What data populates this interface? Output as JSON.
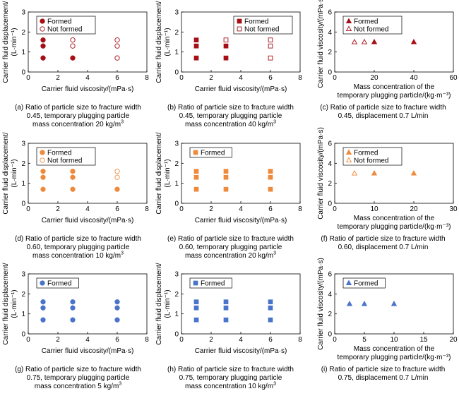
{
  "panels": [
    {
      "caption": {
        "line1": "(a) Ratio of particle size to fracture width",
        "line2": "0.45, temporary plugging particle",
        "line3": "mass concentration 20 kg/m",
        "sup": "3"
      },
      "chart_data": {
        "type": "scatter",
        "marker": "circle",
        "color": "#a50f15",
        "xlabel": "Carrier fluid viscosity/(mPa·s)",
        "ylabel": [
          "Carrier fluid displacement/",
          "(L·min⁻¹)"
        ],
        "xlim": [
          0,
          8
        ],
        "ylim": [
          0,
          3
        ],
        "xticks": [
          0,
          2,
          4,
          6,
          8
        ],
        "yticks": [
          0,
          1,
          2,
          3
        ],
        "legend": {
          "position": "top-left"
        },
        "series": [
          {
            "name": "Formed",
            "filled": true,
            "points": [
              [
                1,
                0.7
              ],
              [
                1,
                1.3
              ],
              [
                1,
                1.6
              ],
              [
                3,
                0.7
              ]
            ]
          },
          {
            "name": "Not formed",
            "filled": false,
            "points": [
              [
                3,
                1.3
              ],
              [
                3,
                1.6
              ],
              [
                6,
                0.7
              ],
              [
                6,
                1.3
              ],
              [
                6,
                1.6
              ]
            ]
          }
        ]
      }
    },
    {
      "caption": {
        "line1": "(b) Ratio of particle size to fracture width",
        "line2": "0.45, temporary plugging particle",
        "line3": "mass concentration 40 kg/m",
        "sup": "3"
      },
      "chart_data": {
        "type": "scatter",
        "marker": "square",
        "color": "#a50f15",
        "xlabel": "Carrier fluid viscosity/(mPa·s)",
        "ylabel": [
          "Carrier fluid displacement/",
          "(L·min⁻¹)"
        ],
        "xlim": [
          0,
          8
        ],
        "ylim": [
          0,
          3
        ],
        "xticks": [
          0,
          2,
          4,
          6,
          8
        ],
        "yticks": [
          0,
          1,
          2,
          3
        ],
        "legend": {
          "position": "top-center"
        },
        "series": [
          {
            "name": "Formed",
            "filled": true,
            "points": [
              [
                1,
                0.7
              ],
              [
                1,
                1.3
              ],
              [
                1,
                1.6
              ],
              [
                3,
                0.7
              ],
              [
                3,
                1.3
              ]
            ]
          },
          {
            "name": "Not formed",
            "filled": false,
            "points": [
              [
                3,
                1.6
              ],
              [
                6,
                0.7
              ],
              [
                6,
                1.3
              ],
              [
                6,
                1.6
              ]
            ]
          }
        ]
      }
    },
    {
      "caption": {
        "line1": "(c) Ratio of particle size to fracture width",
        "line2": "0.45, displacement 0.7 L/min",
        "line3": "",
        "sup": ""
      },
      "chart_data": {
        "type": "scatter",
        "marker": "triangle",
        "color": "#a50f15",
        "xlabel": "Mass concentration of the temporary plugging particle/(kg·m⁻³)",
        "ylabel": [
          "Carrier fluid viscosity/(mPa·s)"
        ],
        "xlim": [
          0,
          60
        ],
        "ylim": [
          0,
          6
        ],
        "xticks": [
          0,
          20,
          40,
          60
        ],
        "yticks": [
          0,
          2,
          4,
          6
        ],
        "legend": {
          "position": "top-left"
        },
        "series": [
          {
            "name": "Formed",
            "filled": true,
            "points": [
              [
                20,
                3
              ],
              [
                40,
                3
              ]
            ]
          },
          {
            "name": "Not formed",
            "filled": false,
            "points": [
              [
                10,
                3
              ],
              [
                15,
                3
              ]
            ]
          }
        ]
      }
    },
    {
      "caption": {
        "line1": "(d) Ratio of particle size to fracture width",
        "line2": "0.60, temporary plugging particle",
        "line3": "mass concentration 10 kg/m",
        "sup": "3"
      },
      "chart_data": {
        "type": "scatter",
        "marker": "circle",
        "color": "#ee8a3c",
        "xlabel": "Carrier fluid viscosity/(mPa·s)",
        "ylabel": [
          "Carrier fluid displacement/",
          "(L·min⁻¹)"
        ],
        "xlim": [
          0,
          8
        ],
        "ylim": [
          0,
          3
        ],
        "xticks": [
          0,
          2,
          4,
          6,
          8
        ],
        "yticks": [
          0,
          1,
          2,
          3
        ],
        "legend": {
          "position": "top-left"
        },
        "series": [
          {
            "name": "Formed",
            "filled": true,
            "points": [
              [
                1,
                0.7
              ],
              [
                1,
                1.3
              ],
              [
                1,
                1.6
              ],
              [
                3,
                0.7
              ],
              [
                3,
                1.3
              ],
              [
                3,
                1.6
              ],
              [
                6,
                0.7
              ]
            ]
          },
          {
            "name": "Not formed",
            "filled": false,
            "points": [
              [
                6,
                1.3
              ],
              [
                6,
                1.6
              ]
            ]
          }
        ]
      }
    },
    {
      "caption": {
        "line1": "(e) Ratio of particle size to fracture width",
        "line2": "0.60, temporary plugging particle",
        "line3": "mass concentration 20 kg/m",
        "sup": "3"
      },
      "chart_data": {
        "type": "scatter",
        "marker": "square",
        "color": "#ee8a3c",
        "xlabel": "Carrier fluid viscosity/(mPa·s)",
        "ylabel": [
          "Carrier fluid displacement/",
          "(L·min⁻¹)"
        ],
        "xlim": [
          0,
          8
        ],
        "ylim": [
          0,
          3
        ],
        "xticks": [
          0,
          2,
          4,
          6,
          8
        ],
        "yticks": [
          0,
          1,
          2,
          3
        ],
        "legend": {
          "position": "top-left"
        },
        "series": [
          {
            "name": "Formed",
            "filled": true,
            "points": [
              [
                1,
                0.7
              ],
              [
                1,
                1.3
              ],
              [
                1,
                1.6
              ],
              [
                3,
                0.7
              ],
              [
                3,
                1.3
              ],
              [
                3,
                1.6
              ],
              [
                6,
                0.7
              ],
              [
                6,
                1.3
              ],
              [
                6,
                1.6
              ]
            ]
          }
        ]
      }
    },
    {
      "caption": {
        "line1": "(f) Ratio of particle size to fracture width",
        "line2": "0.60, displacement 0.7 L/min",
        "line3": "",
        "sup": ""
      },
      "chart_data": {
        "type": "scatter",
        "marker": "triangle",
        "color": "#ee8a3c",
        "xlabel": "Mass concentration of the temporary plugging particle/(kg·m⁻³)",
        "ylabel": [
          "Carrier fluid viscosity/(mPa·s)"
        ],
        "xlim": [
          0,
          30
        ],
        "ylim": [
          0,
          6
        ],
        "xticks": [
          0,
          10,
          20,
          30
        ],
        "yticks": [
          0,
          2,
          4,
          6
        ],
        "legend": {
          "position": "top-left"
        },
        "series": [
          {
            "name": "Formed",
            "filled": true,
            "points": [
              [
                10,
                3
              ],
              [
                20,
                3
              ]
            ]
          },
          {
            "name": "Not formed",
            "filled": false,
            "points": [
              [
                5,
                3
              ]
            ]
          }
        ]
      }
    },
    {
      "caption": {
        "line1": "(g) Ratio of particle size to fracture width",
        "line2": "0.75, temporary plugging particle",
        "line3": "mass concentration 5 kg/m",
        "sup": "3"
      },
      "chart_data": {
        "type": "scatter",
        "marker": "circle",
        "color": "#4a74c9",
        "xlabel": "Carrier fluid viscosity/(mPa·s)",
        "ylabel": [
          "Carrier fluid displacement/",
          "(L·min⁻¹)"
        ],
        "xlim": [
          0,
          8
        ],
        "ylim": [
          0,
          3
        ],
        "xticks": [
          0,
          2,
          4,
          6,
          8
        ],
        "yticks": [
          0,
          1,
          2,
          3
        ],
        "legend": {
          "position": "top-left"
        },
        "series": [
          {
            "name": "Formed",
            "filled": true,
            "points": [
              [
                1,
                0.7
              ],
              [
                1,
                1.3
              ],
              [
                1,
                1.6
              ],
              [
                3,
                0.7
              ],
              [
                3,
                1.3
              ],
              [
                3,
                1.6
              ],
              [
                6,
                0.7
              ],
              [
                6,
                1.3
              ],
              [
                6,
                1.6
              ]
            ]
          }
        ]
      }
    },
    {
      "caption": {
        "line1": "(h) Ratio of particle size to fracture width",
        "line2": "0.75, temporary plugging particle",
        "line3": "mass concentration 10 kg/m",
        "sup": "3"
      },
      "chart_data": {
        "type": "scatter",
        "marker": "square",
        "color": "#4a74c9",
        "xlabel": "Carrier fluid viscosity/(mPa·s)",
        "ylabel": [
          "Carrier fluid displacement/",
          "(L·min⁻¹)"
        ],
        "xlim": [
          0,
          8
        ],
        "ylim": [
          0,
          3
        ],
        "xticks": [
          0,
          2,
          4,
          6,
          8
        ],
        "yticks": [
          0,
          1,
          2,
          3
        ],
        "legend": {
          "position": "top-left"
        },
        "series": [
          {
            "name": "Formed",
            "filled": true,
            "points": [
              [
                1,
                0.7
              ],
              [
                1,
                1.3
              ],
              [
                1,
                1.6
              ],
              [
                3,
                0.7
              ],
              [
                3,
                1.3
              ],
              [
                3,
                1.6
              ],
              [
                6,
                0.7
              ],
              [
                6,
                1.3
              ],
              [
                6,
                1.6
              ]
            ]
          }
        ]
      }
    },
    {
      "caption": {
        "line1": "(i) Ratio of particle size to fracture width",
        "line2": "0.75, displacement 0.7 L/min",
        "line3": "",
        "sup": ""
      },
      "chart_data": {
        "type": "scatter",
        "marker": "triangle",
        "color": "#4a74c9",
        "xlabel": "Mass concentration of the temporary plugging particle/(kg·m⁻³)",
        "ylabel": [
          "Carrier fluid viscosity/(mPa·s)"
        ],
        "xlim": [
          0,
          20
        ],
        "ylim": [
          0,
          6
        ],
        "xticks": [
          0,
          5,
          10,
          15,
          20
        ],
        "yticks": [
          0,
          2,
          4,
          6
        ],
        "legend": {
          "position": "top-left"
        },
        "series": [
          {
            "name": "Formed",
            "filled": true,
            "points": [
              [
                2.5,
                3
              ],
              [
                5,
                3
              ],
              [
                10,
                3
              ]
            ]
          }
        ]
      }
    }
  ]
}
